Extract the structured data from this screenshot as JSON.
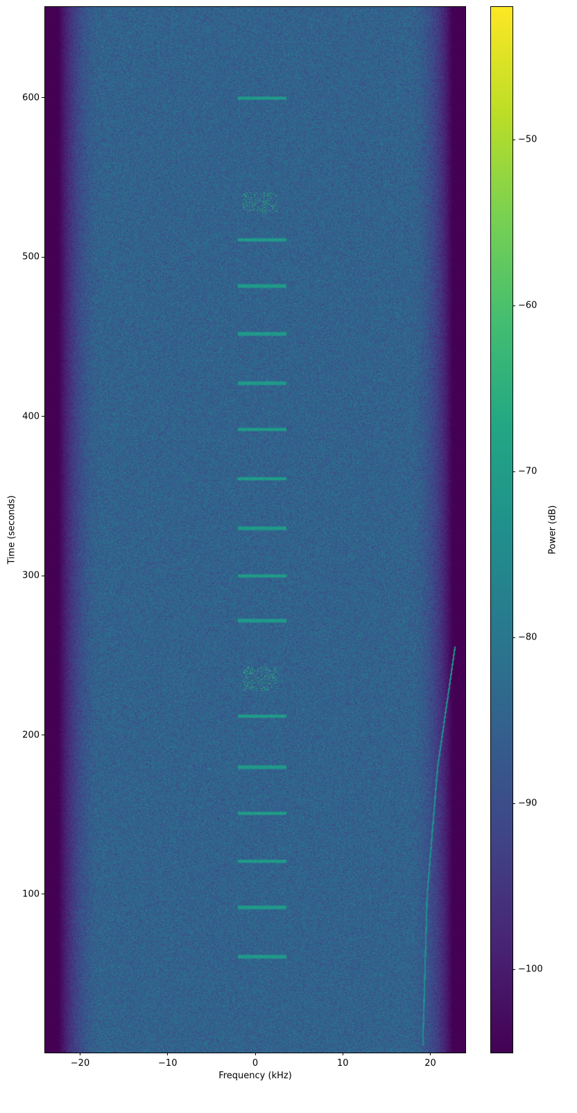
{
  "chart_data": {
    "type": "heatmap",
    "title": "",
    "xlabel": "Frequency (kHz)",
    "ylabel": "Time (seconds)",
    "xlim": [
      -24,
      24
    ],
    "ylim": [
      0.6,
      657
    ],
    "xticks": [
      -20,
      -10,
      0,
      10,
      20
    ],
    "xtick_labels": [
      "−20",
      "−10",
      "0",
      "10",
      "20"
    ],
    "yticks": [
      100,
      200,
      300,
      400,
      500,
      600
    ],
    "ytick_labels": [
      "100",
      "200",
      "300",
      "400",
      "500",
      "600"
    ],
    "colormap": "viridis",
    "colorbar": {
      "label": "Power (dB)",
      "range": [
        -105,
        -42
      ],
      "ticks": [
        -50,
        -60,
        -70,
        -80,
        -90,
        -100
      ],
      "tick_labels": [
        "−50",
        "−60",
        "−70",
        "−80",
        "−90",
        "−100"
      ]
    },
    "background_level_db": -85,
    "passband_edge_khz": 22,
    "out_of_band_level_db": -105,
    "tone_bursts_near_0khz_seconds": [
      61,
      92,
      121,
      151,
      180,
      212,
      272,
      300,
      330,
      361,
      392,
      421,
      452,
      482,
      511,
      600
    ],
    "modulated_bursts": [
      {
        "t_start": 228,
        "t_end": 243,
        "f_low": -1.5,
        "f_high": 2.5
      },
      {
        "t_start": 528,
        "t_end": 541,
        "f_low": -1.5,
        "f_high": 2.5
      }
    ],
    "chirp": {
      "t": [
        5,
        100,
        180,
        256
      ],
      "f": [
        19.1,
        19.6,
        20.8,
        22.8
      ]
    }
  }
}
